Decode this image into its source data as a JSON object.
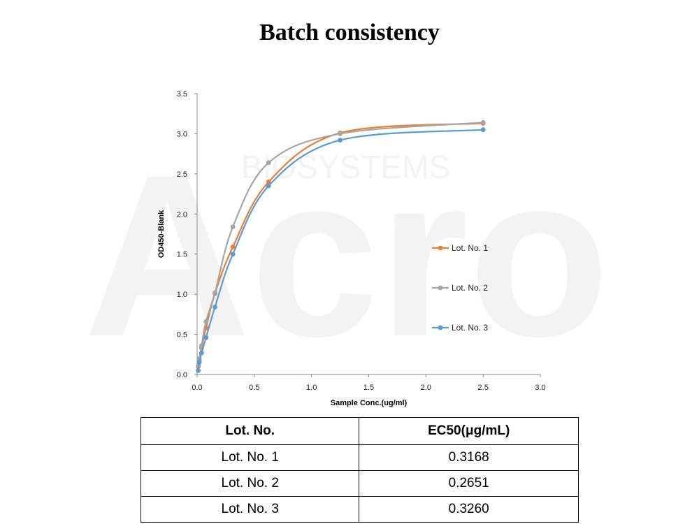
{
  "title": "Batch consistency",
  "watermark": {
    "brand": "Acro",
    "sub": "BIOSYSTEMS"
  },
  "chart_data": {
    "type": "line",
    "xlabel": "Sample Conc.(ug/ml)",
    "ylabel": "OD450-Blank",
    "xlim": [
      0,
      3.0
    ],
    "ylim": [
      0,
      3.5
    ],
    "xticks": [
      "0.0",
      "0.5",
      "1.0",
      "1.5",
      "2.0",
      "2.5",
      "3.0"
    ],
    "yticks": [
      "0.0",
      "0.5",
      "1.0",
      "1.5",
      "2.0",
      "2.5",
      "3.0",
      "3.5"
    ],
    "grid": false,
    "legend_position": "right",
    "x": [
      0.0098,
      0.0195,
      0.039,
      0.078,
      0.156,
      0.3125,
      0.625,
      1.25,
      2.5
    ],
    "series": [
      {
        "name": "Lot. No. 1",
        "color": "#ED7D31",
        "values": [
          0.1,
          0.18,
          0.33,
          0.58,
          1.01,
          1.59,
          2.4,
          3.01,
          3.13
        ]
      },
      {
        "name": "Lot. No. 2",
        "color": "#A5A5A5",
        "values": [
          0.11,
          0.2,
          0.36,
          0.66,
          1.02,
          1.84,
          2.64,
          3.0,
          3.14
        ]
      },
      {
        "name": "Lot. No. 3",
        "color": "#5B9BD5",
        "values": [
          0.05,
          0.15,
          0.27,
          0.46,
          0.84,
          1.5,
          2.35,
          2.92,
          3.05
        ]
      }
    ]
  },
  "table": {
    "headers": [
      "Lot. No.",
      "EC50(μg/mL)"
    ],
    "rows": [
      [
        "Lot. No. 1",
        "0.3168"
      ],
      [
        "Lot. No. 2",
        "0.2651"
      ],
      [
        "Lot. No. 3",
        "0.3260"
      ]
    ]
  }
}
